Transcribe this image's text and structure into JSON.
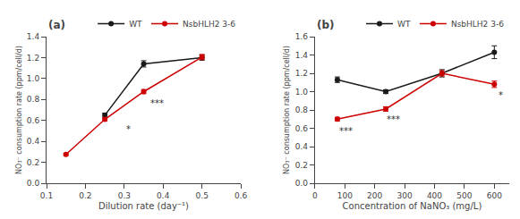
{
  "chart_data": [
    {
      "type": "line",
      "title": "(a)",
      "xlabel": "Dilution rate (day⁻¹)",
      "ylabel": "NO₃⁻ consumption rate (ppm/cell/d)",
      "marker": "circle",
      "line_style": "solid",
      "grid": false,
      "legend": "top",
      "series": [
        {
          "name": "WT",
          "color": "#1a1a1a",
          "x": [
            0.25,
            0.35,
            0.5
          ],
          "values": [
            0.65,
            1.14,
            1.2
          ],
          "yerr": [
            0.02,
            0.03,
            0.025
          ]
        },
        {
          "name": "NsbHLH2 3-6",
          "color": "#cc0000",
          "x": [
            0.15,
            0.25,
            0.35,
            0.5
          ],
          "values": [
            0.275,
            0.61,
            0.875,
            1.205
          ],
          "yerr": [
            0.01,
            0.015,
            0.02,
            0.025
          ]
        }
      ],
      "annotations": [
        {
          "x": 0.31,
          "y": 0.52,
          "text": "*"
        },
        {
          "x": 0.385,
          "y": 0.76,
          "text": "***"
        }
      ],
      "xlim": [
        0.1,
        0.6
      ],
      "ylim": [
        0.0,
        1.4
      ],
      "xticks": [
        0.1,
        0.2,
        0.3,
        0.4,
        0.5,
        0.6
      ],
      "yticks": [
        {
          "value": 0.0,
          "label": "0.0"
        },
        0.2,
        0.4,
        0.6,
        0.8,
        {
          "value": 1.0,
          "label": "1.0"
        },
        1.2,
        1.4
      ]
    },
    {
      "type": "line",
      "title": "(b)",
      "xlabel": "Concentration of NaNO₃ (mg/L)",
      "ylabel": "NO₃⁻ consumption rate (ppm/cell/d)",
      "marker": "circle",
      "line_style": "solid",
      "grid": false,
      "legend": "top",
      "series": [
        {
          "name": "WT",
          "color": "#1a1a1a",
          "x": [
            75,
            237,
            425,
            600
          ],
          "values": [
            1.13,
            1.0,
            1.2,
            1.43
          ],
          "yerr": [
            0.03,
            0.02,
            0.04,
            0.07
          ]
        },
        {
          "name": "NsbHLH2 3-6",
          "color": "#cc0000",
          "x": [
            75,
            237,
            425,
            600
          ],
          "values": [
            0.7,
            0.81,
            1.2,
            1.08
          ],
          "yerr": [
            0.02,
            0.025,
            0.03,
            0.035
          ]
        }
      ],
      "annotations": [
        {
          "x": 105,
          "y": 0.575,
          "text": "***"
        },
        {
          "x": 262,
          "y": 0.695,
          "text": "***"
        },
        {
          "x": 622,
          "y": 0.96,
          "text": "*"
        }
      ],
      "xlim": [
        0,
        650
      ],
      "ylim": [
        0.0,
        1.6
      ],
      "xticks": [
        0,
        100,
        200,
        300,
        400,
        500,
        600
      ],
      "yticks": [
        {
          "value": 0.0,
          "label": "0.0"
        },
        0.2,
        0.4,
        0.6,
        0.8,
        {
          "value": 1.0,
          "label": "1.0"
        },
        1.2,
        1.4,
        1.6
      ]
    }
  ]
}
